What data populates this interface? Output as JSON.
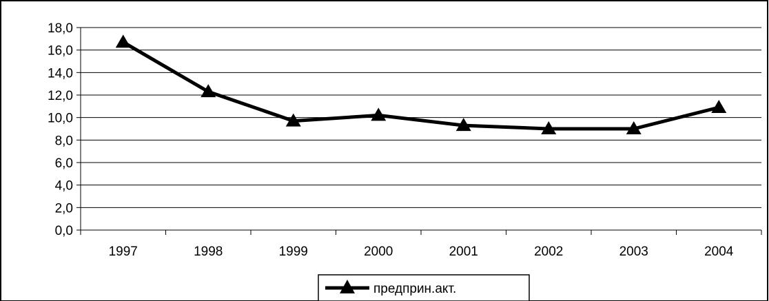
{
  "chart_data": {
    "type": "line",
    "categories": [
      "1997",
      "1998",
      "1999",
      "2000",
      "2001",
      "2002",
      "2003",
      "2004"
    ],
    "series": [
      {
        "name": "предприн.акт.",
        "values": [
          16.7,
          12.3,
          9.7,
          10.2,
          9.3,
          9.0,
          9.0,
          10.9
        ],
        "color": "#000000",
        "marker": "triangle"
      }
    ],
    "y_ticks": [
      "0,0",
      "2,0",
      "4,0",
      "6,0",
      "8,0",
      "10,0",
      "12,0",
      "14,0",
      "16,0",
      "18,0"
    ],
    "ylim": [
      0,
      18
    ],
    "grid": true,
    "legend_position": "bottom-center"
  }
}
